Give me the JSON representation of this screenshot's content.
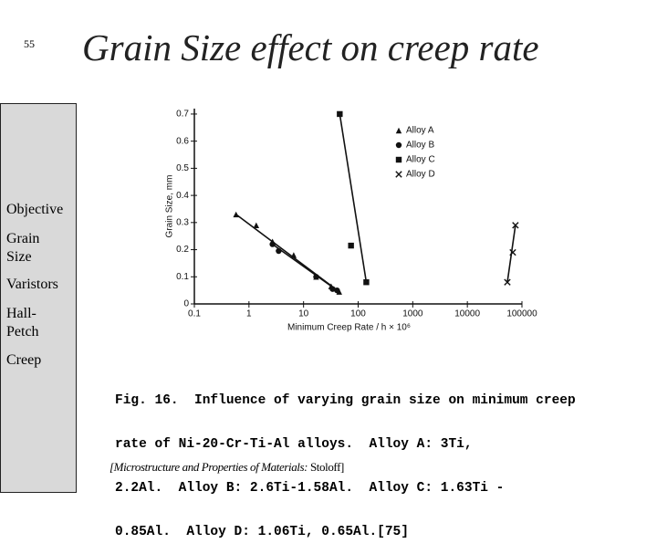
{
  "slide_number": "55",
  "title": "Grain Size effect on creep rate",
  "sidebar": [
    "Objective",
    "Grain Size",
    "Varistors",
    "Hall-Petch",
    "Creep"
  ],
  "caption": [
    "Fig. 16.  Influence of varying grain size on minimum creep",
    "rate of Ni-20-Cr-Ti-Al alloys.  Alloy A: 3Ti,",
    "2.2Al.  Alloy B: 2.6Ti-1.58Al.  Alloy C: 1.63Ti -",
    "0.85Al.  Alloy D: 1.06Ti, 0.65Al.[75]"
  ],
  "citation": {
    "source": "[Microstructure and Properties of Materials:",
    "author": " Stoloff]"
  },
  "chart_data": {
    "type": "scatter",
    "x_label": "Minimum Creep Rate / h × 10⁶",
    "y_label": "Grain Size, mm",
    "x_scale": "log",
    "xlim": [
      0.1,
      100000
    ],
    "xticks": [
      0.1,
      1,
      10,
      100,
      1000,
      10000,
      100000
    ],
    "ylim": [
      0,
      0.72
    ],
    "yticks": [
      0,
      0.1,
      0.2,
      0.3,
      0.4,
      0.5,
      0.6,
      0.7
    ],
    "legend": "upper right",
    "fit_lines": true,
    "series": [
      {
        "name": "Alloy A",
        "color": "#111111",
        "marker": "triangle",
        "x": [
          0.58,
          1.36,
          2.7,
          6.6,
          17,
          32,
          45
        ],
        "values": [
          0.33,
          0.29,
          0.23,
          0.18,
          0.1,
          0.065,
          0.045
        ]
      },
      {
        "name": "Alloy B",
        "color": "#111111",
        "marker": "circle",
        "x": [
          2.7,
          3.5,
          17,
          34,
          41
        ],
        "values": [
          0.22,
          0.195,
          0.1,
          0.055,
          0.05
        ]
      },
      {
        "name": "Alloy C",
        "color": "#111111",
        "marker": "square",
        "x": [
          46,
          74,
          141
        ],
        "values": [
          0.7,
          0.215,
          0.08
        ]
      },
      {
        "name": "Alloy D",
        "color": "#111111",
        "marker": "x",
        "x": [
          54000,
          68000,
          76000
        ],
        "values": [
          0.08,
          0.19,
          0.29
        ]
      }
    ]
  }
}
